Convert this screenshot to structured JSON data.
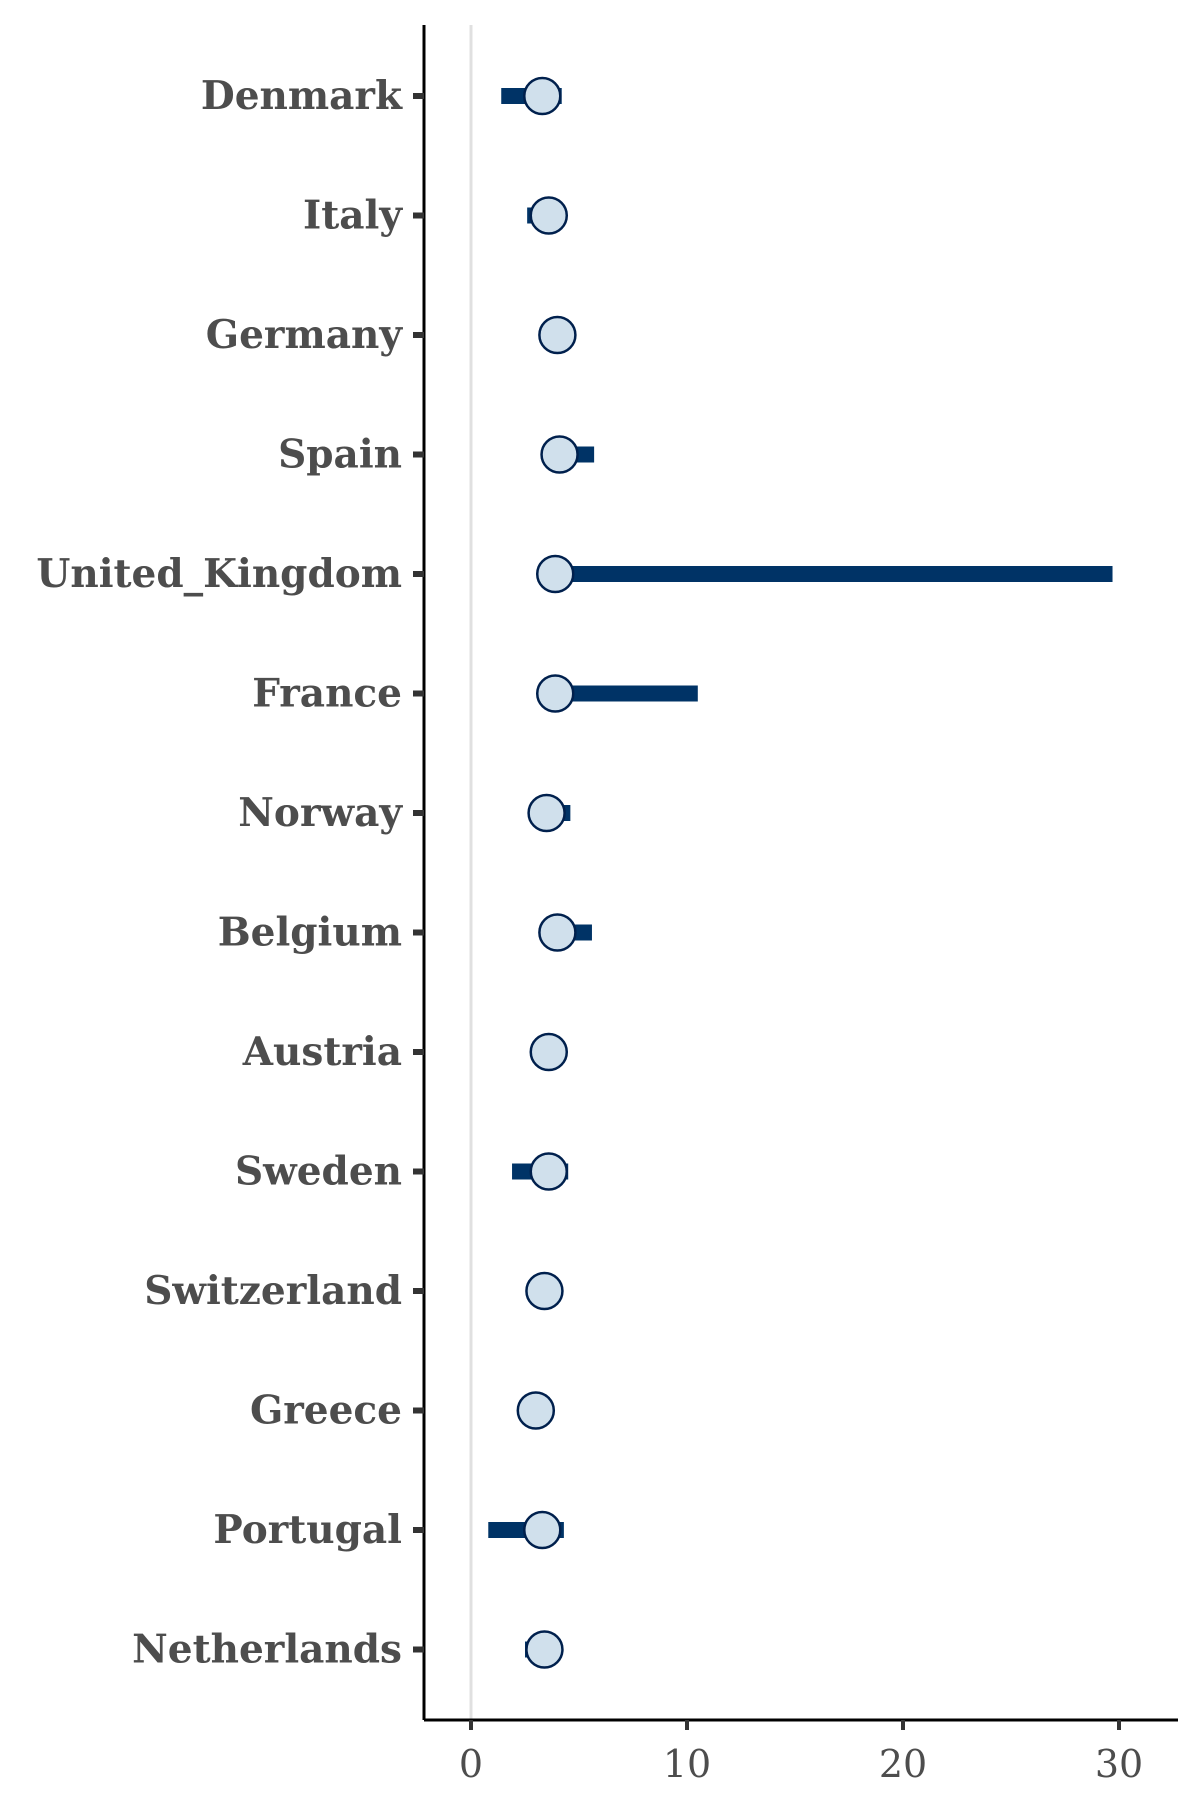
{
  "chart_data": {
    "type": "dot-interval",
    "title": "",
    "xlabel": "",
    "ylabel": "",
    "categories": [
      "Denmark",
      "Italy",
      "Germany",
      "Spain",
      "United_Kingdom",
      "France",
      "Norway",
      "Belgium",
      "Austria",
      "Sweden",
      "Switzerland",
      "Greece",
      "Portugal",
      "Netherlands"
    ],
    "points": [
      3.3,
      3.6,
      4.0,
      4.1,
      3.9,
      3.9,
      3.5,
      4.0,
      3.6,
      3.6,
      3.4,
      3.0,
      3.3,
      3.4
    ],
    "intervals": [
      [
        1.4,
        4.2
      ],
      [
        2.6,
        4.0
      ],
      [
        4.0,
        4.0
      ],
      [
        3.5,
        5.7
      ],
      [
        3.3,
        29.7
      ],
      [
        3.2,
        10.5
      ],
      [
        3.0,
        4.6
      ],
      [
        3.5,
        5.6
      ],
      [
        3.6,
        3.6
      ],
      [
        1.9,
        4.5
      ],
      [
        3.4,
        3.4
      ],
      [
        2.4,
        3.3
      ],
      [
        0.8,
        4.3
      ],
      [
        2.5,
        3.7
      ]
    ],
    "xlim": [
      -2.2,
      32.8
    ],
    "xticks": [
      0,
      10,
      20,
      30
    ],
    "reference_line": 0,
    "grid": false,
    "colors": {
      "interval": "#003366",
      "point_fill": "#d0e0ec",
      "point_stroke": "#00204d",
      "reference_line": "#e0e0e0",
      "axis": "#000000",
      "label": "#4d4d4d"
    }
  }
}
